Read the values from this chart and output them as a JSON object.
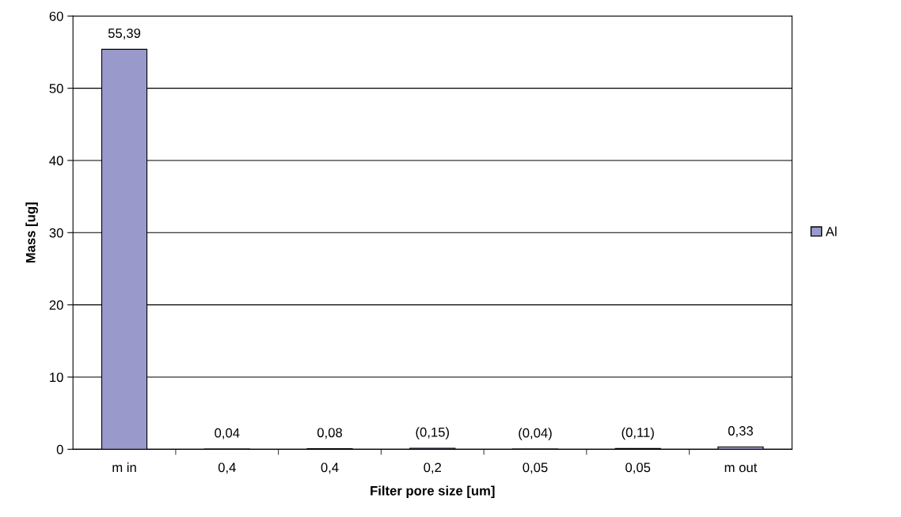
{
  "chart_data": {
    "type": "bar",
    "xlabel": "Filter pore size [um]",
    "ylabel": "Mass [ug]",
    "categories": [
      "m in",
      "0,4",
      "0,4",
      "0,2",
      "0,05",
      "0,05",
      "m out"
    ],
    "series": [
      {
        "name": "Al",
        "color": "#9999cc",
        "values": [
          55.39,
          0.04,
          0.08,
          0.15,
          0.04,
          0.11,
          0.33
        ],
        "value_labels": [
          "55,39",
          "0,04",
          "0,08",
          "(0,15)",
          "(0,04)",
          "(0,11)",
          "0,33"
        ]
      }
    ],
    "ylim": [
      0,
      60
    ],
    "yticks": [
      0,
      10,
      20,
      30,
      40,
      50,
      60
    ],
    "grid": "y",
    "legend": "right"
  }
}
